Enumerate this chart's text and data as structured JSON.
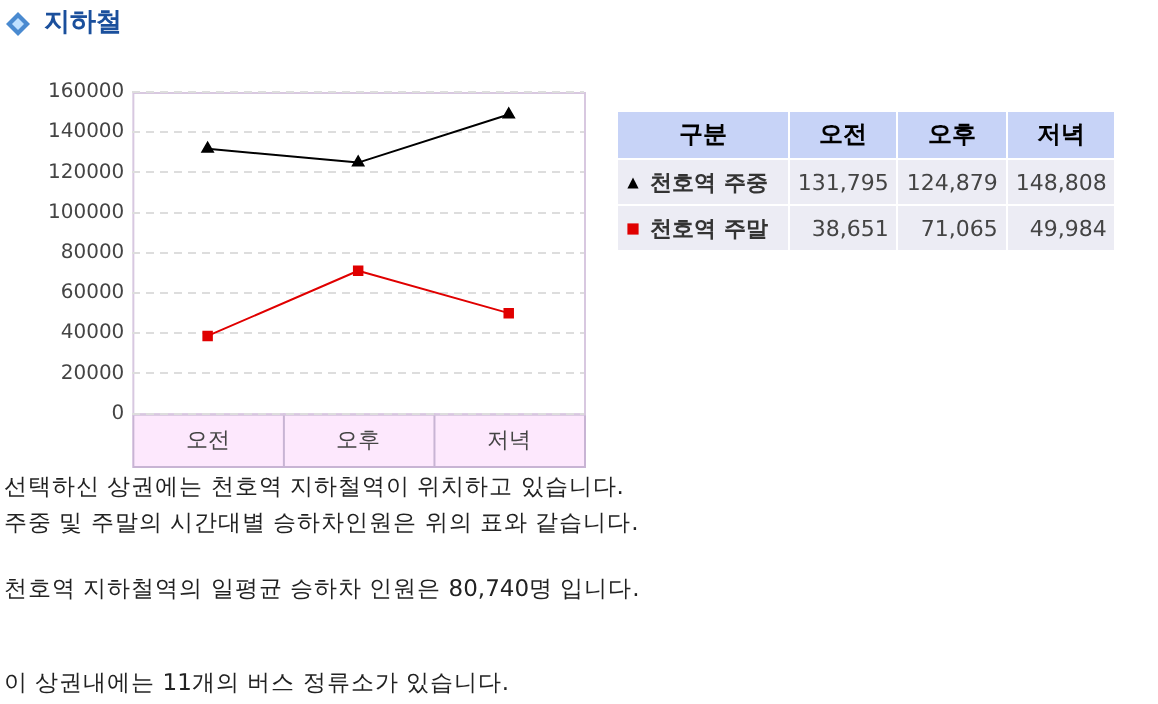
{
  "chart_data": [
    {
      "type": "line",
      "title": "지하철",
      "categories": [
        "오전",
        "오후",
        "저녁"
      ],
      "series": [
        {
          "color": "#000000",
          "marker": "triangle",
          "values": [
            131795,
            124879,
            148808
          ]
        },
        {
          "color": "#e00000",
          "marker": "square",
          "values": [
            38651,
            71065,
            49984
          ]
        }
      ],
      "ylim": [
        0,
        160000
      ],
      "yticks": [
        0,
        20000,
        40000,
        60000,
        80000,
        100000,
        120000,
        140000,
        160000
      ],
      "grid": "y",
      "line_style": "solid",
      "annotations": [
        "선택하신 상권에는 천호역 지하철역이 위치하고 있습니다.",
        "주중 및 주말의 시간대별 승하차인원은 위의 표와 같습니다.",
        "천호역 지하철역의 일평균 승하차 인원은 80,740명 입니다.",
        "이 상권내에는 11개의 버스 정류소가 있습니다."
      ]
    },
    {
      "type": "other",
      "legend_title": "구분",
      "categories": [
        "오전",
        "오후",
        "저녁"
      ],
      "series": [
        {
          "name": "천호역 주중",
          "marker": "triangle",
          "values": [
            131795,
            124879,
            148808
          ],
          "value_labels": [
            "131,795",
            "124,879",
            "148,808"
          ]
        },
        {
          "name": "천호역 주말",
          "marker": "square",
          "values": [
            38651,
            71065,
            49984
          ],
          "value_labels": [
            "38,651",
            "71,065",
            "49,984"
          ]
        }
      ]
    }
  ]
}
